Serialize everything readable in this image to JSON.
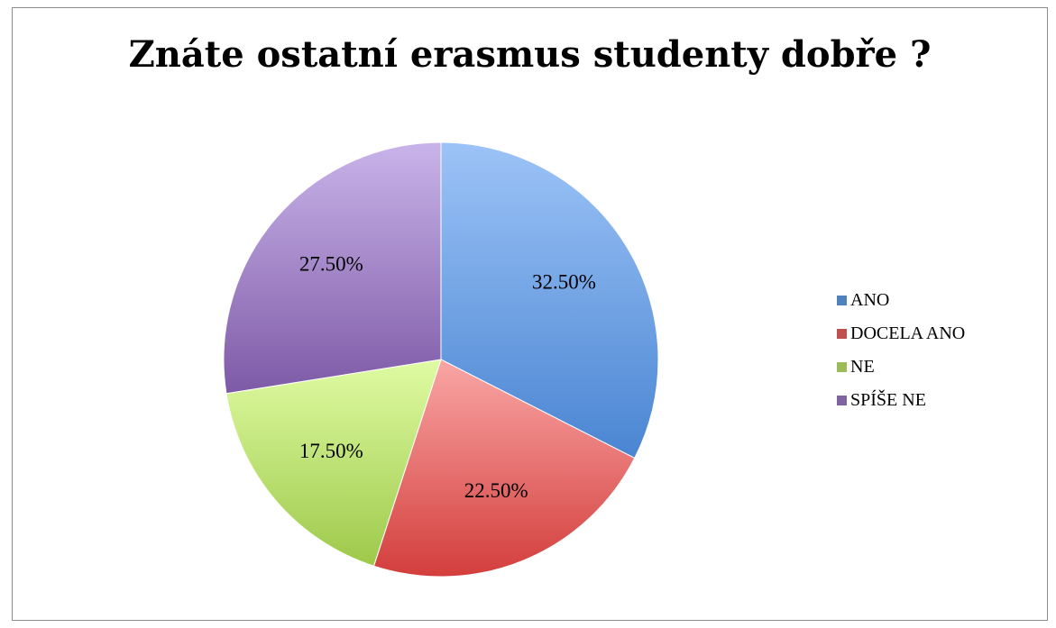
{
  "chart_data": {
    "type": "pie",
    "title": "Znáte ostatní erasmus studenty dobře ?",
    "categories": [
      "ANO",
      "DOCELA ANO",
      "NE",
      "SPÍŠE NE"
    ],
    "values": [
      32.5,
      22.5,
      17.5,
      27.5
    ],
    "labels": [
      "32.50%",
      "22.50%",
      "17.50%",
      "27.50%"
    ],
    "colors": [
      {
        "light": "#9cc3f7",
        "dark": "#4a85d2"
      },
      {
        "light": "#f9a6a5",
        "dark": "#d33e3c"
      },
      {
        "light": "#e0fba3",
        "dark": "#9dc94a"
      },
      {
        "light": "#c9b4ea",
        "dark": "#7e5aa6"
      }
    ],
    "legend_colors": [
      "#4f81bd",
      "#c0504d",
      "#9bbb59",
      "#8064a2"
    ],
    "legend_position": "right",
    "start_angle": "12 o'clock",
    "direction": "clockwise"
  }
}
